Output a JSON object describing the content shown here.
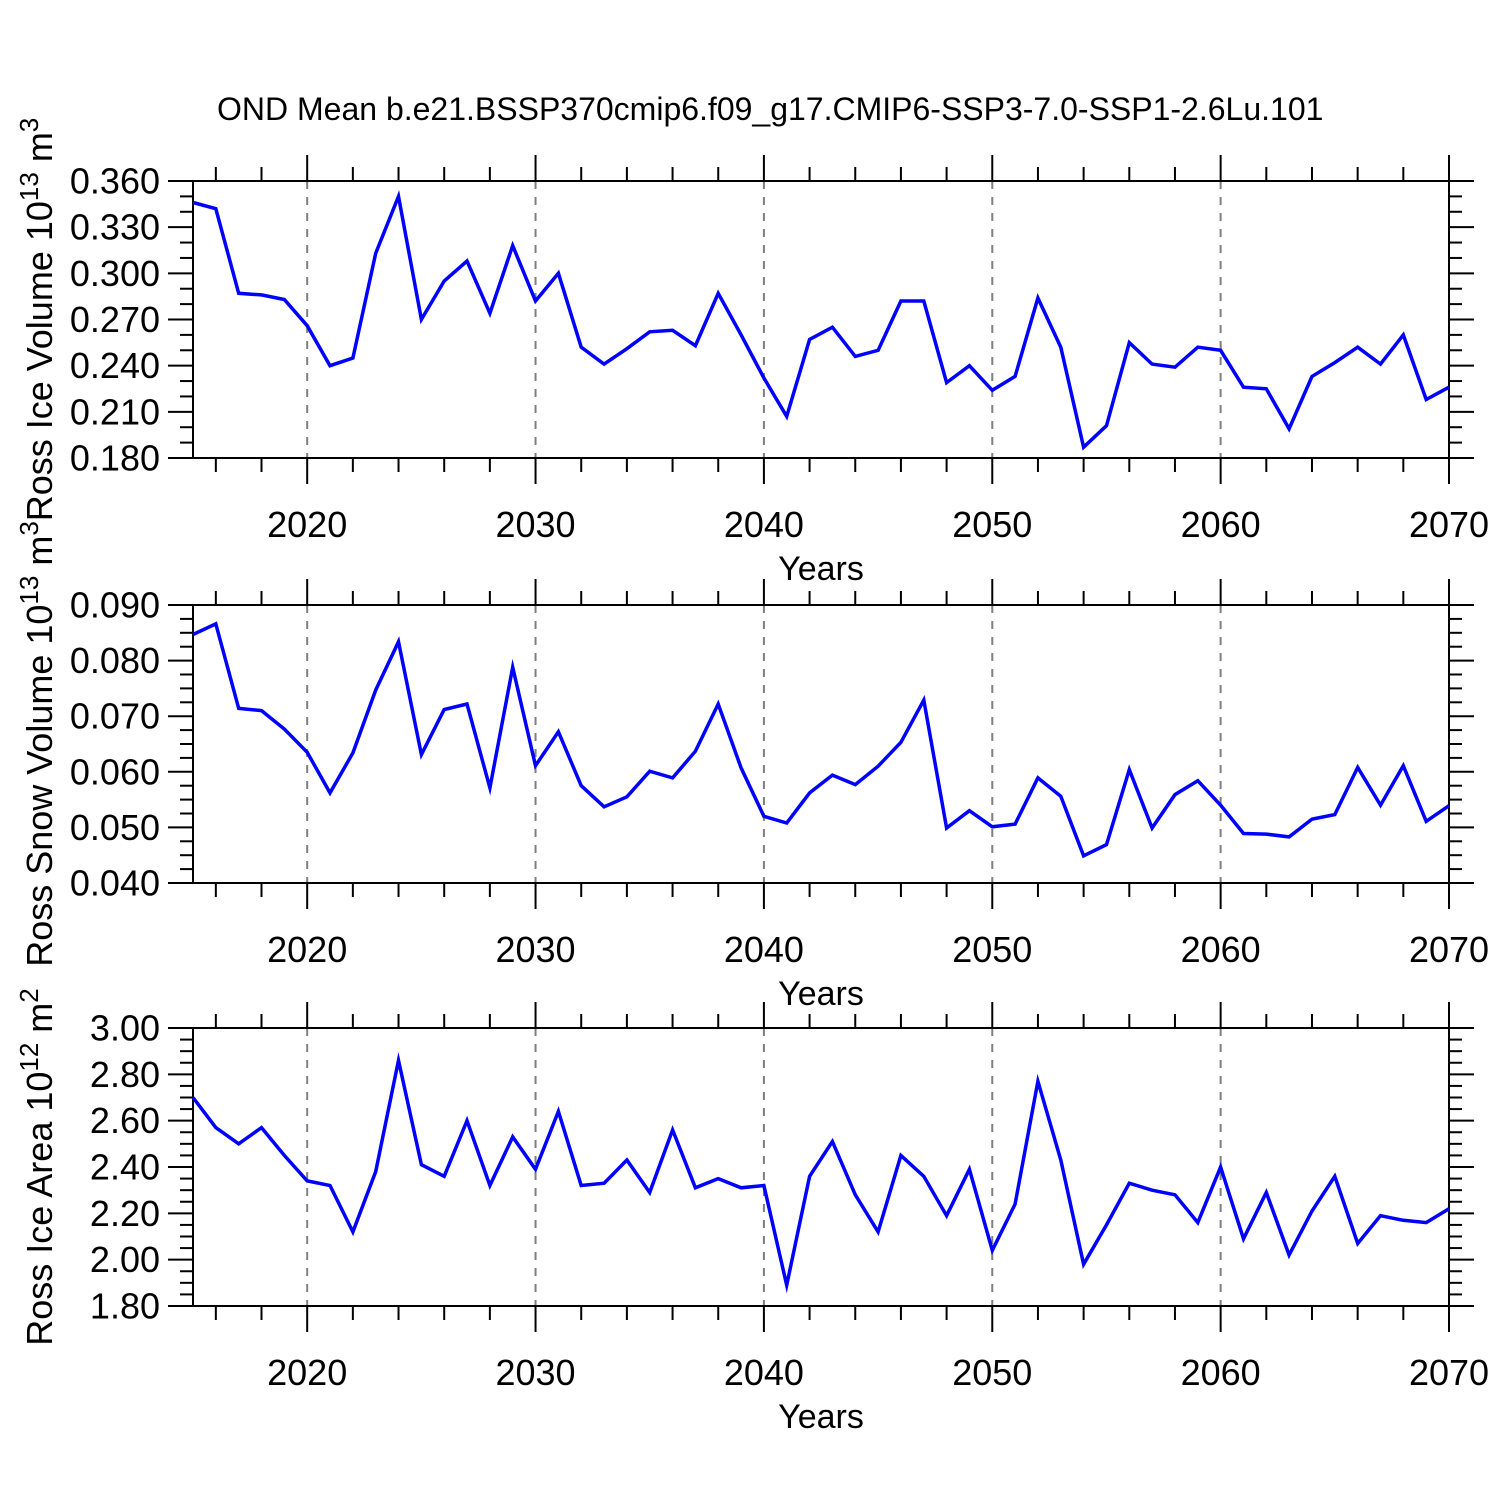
{
  "title": "OND Mean b.e21.BSSP370cmip6.f09_g17.CMIP6-SSP3-7.0-SSP1-2.6Lu.101",
  "line_color": "#0000ff",
  "gridline_color": "#7f7f7f",
  "frame_color": "#000000",
  "years": [
    2015,
    2016,
    2017,
    2018,
    2019,
    2020,
    2021,
    2022,
    2023,
    2024,
    2025,
    2026,
    2027,
    2028,
    2029,
    2030,
    2031,
    2032,
    2033,
    2034,
    2035,
    2036,
    2037,
    2038,
    2039,
    2040,
    2041,
    2042,
    2043,
    2044,
    2045,
    2046,
    2047,
    2048,
    2049,
    2050,
    2051,
    2052,
    2053,
    2054,
    2055,
    2056,
    2057,
    2058,
    2059,
    2060,
    2061,
    2062,
    2063,
    2064,
    2065,
    2066,
    2067,
    2068,
    2069,
    2070
  ],
  "x_axis": {
    "label": "Years",
    "range": [
      2015,
      2070
    ],
    "major_ticks": [
      2020,
      2030,
      2040,
      2050,
      2060,
      2070
    ],
    "major_tick_labels": [
      "2020",
      "2030",
      "2040",
      "2050",
      "2060",
      "2070"
    ],
    "minor_tick_step": 2,
    "gridlines": [
      2020,
      2030,
      2040,
      2050,
      2060
    ],
    "gridline_style": "dashed"
  },
  "chart_data": [
    {
      "type": "line",
      "ylabel": "Ross Ice Volume 10^13 m^3",
      "ylabel_parts": [
        {
          "text": "Ross Ice Volume 10"
        },
        {
          "text": "13",
          "sup": true
        },
        {
          "text": " m"
        },
        {
          "text": "3",
          "sup": true
        }
      ],
      "ylim": [
        0.18,
        0.36
      ],
      "ytick_values": [
        0.18,
        0.21,
        0.24,
        0.27,
        0.3,
        0.33,
        0.36
      ],
      "ytick_labels": [
        "0.180",
        "0.210",
        "0.240",
        "0.270",
        "0.300",
        "0.330",
        "0.360"
      ],
      "minor_tick_step": 0.01,
      "values": [
        0.346,
        0.342,
        0.287,
        0.286,
        0.283,
        0.266,
        0.24,
        0.245,
        0.313,
        0.35,
        0.27,
        0.295,
        0.308,
        0.274,
        0.318,
        0.282,
        0.3,
        0.252,
        0.241,
        0.251,
        0.262,
        0.263,
        0.253,
        0.287,
        0.26,
        0.232,
        0.207,
        0.257,
        0.265,
        0.246,
        0.25,
        0.282,
        0.282,
        0.229,
        0.24,
        0.224,
        0.233,
        0.284,
        0.252,
        0.187,
        0.201,
        0.255,
        0.241,
        0.239,
        0.252,
        0.25,
        0.226,
        0.225,
        0.199,
        0.233,
        0.242,
        0.252,
        0.241,
        0.26,
        0.218,
        0.226
      ]
    },
    {
      "type": "line",
      "ylabel": "Ross Snow Volume 10^13 m^3",
      "ylabel_parts": [
        {
          "text": "Ross Snow Volume 10"
        },
        {
          "text": "13",
          "sup": true
        },
        {
          "text": " m"
        },
        {
          "text": "3",
          "sup": true
        }
      ],
      "ylim": [
        0.04,
        0.09
      ],
      "ytick_values": [
        0.04,
        0.05,
        0.06,
        0.07,
        0.08,
        0.09
      ],
      "ytick_labels": [
        "0.040",
        "0.050",
        "0.060",
        "0.070",
        "0.080",
        "0.090"
      ],
      "minor_tick_step": 0.0025,
      "values": [
        0.0847,
        0.0866,
        0.0714,
        0.071,
        0.0677,
        0.0635,
        0.0562,
        0.0634,
        0.0747,
        0.0834,
        0.0631,
        0.0712,
        0.0722,
        0.0571,
        0.0788,
        0.0611,
        0.0672,
        0.0575,
        0.0537,
        0.0555,
        0.0601,
        0.0589,
        0.0637,
        0.0722,
        0.0607,
        0.052,
        0.0508,
        0.0562,
        0.0594,
        0.0577,
        0.061,
        0.0653,
        0.0729,
        0.0499,
        0.053,
        0.0501,
        0.0506,
        0.0589,
        0.0556,
        0.0449,
        0.0469,
        0.0604,
        0.0499,
        0.0559,
        0.0584,
        0.054,
        0.0489,
        0.0488,
        0.0483,
        0.0515,
        0.0523,
        0.0608,
        0.054,
        0.0611,
        0.0511,
        0.0539
      ]
    },
    {
      "type": "line",
      "ylabel": "Ross Ice Area 10^12 m^2",
      "ylabel_parts": [
        {
          "text": "Ross Ice Area 10"
        },
        {
          "text": "12",
          "sup": true
        },
        {
          "text": " m"
        },
        {
          "text": "2",
          "sup": true
        }
      ],
      "ylim": [
        1.8,
        3.0
      ],
      "ytick_values": [
        1.8,
        2.0,
        2.2,
        2.4,
        2.6,
        2.8,
        3.0
      ],
      "ytick_labels": [
        "1.80",
        "2.00",
        "2.20",
        "2.40",
        "2.60",
        "2.80",
        "3.00"
      ],
      "minor_tick_step": 0.05,
      "values": [
        2.7,
        2.57,
        2.5,
        2.57,
        2.45,
        2.34,
        2.32,
        2.12,
        2.38,
        2.86,
        2.41,
        2.36,
        2.6,
        2.32,
        2.53,
        2.39,
        2.64,
        2.32,
        2.33,
        2.43,
        2.29,
        2.56,
        2.31,
        2.35,
        2.31,
        2.32,
        1.89,
        2.36,
        2.51,
        2.28,
        2.12,
        2.45,
        2.36,
        2.19,
        2.39,
        2.04,
        2.24,
        2.77,
        2.43,
        1.98,
        2.15,
        2.33,
        2.3,
        2.28,
        2.16,
        2.4,
        2.09,
        2.29,
        2.02,
        2.21,
        2.36,
        2.07,
        2.19,
        2.17,
        2.16,
        2.22
      ]
    }
  ]
}
